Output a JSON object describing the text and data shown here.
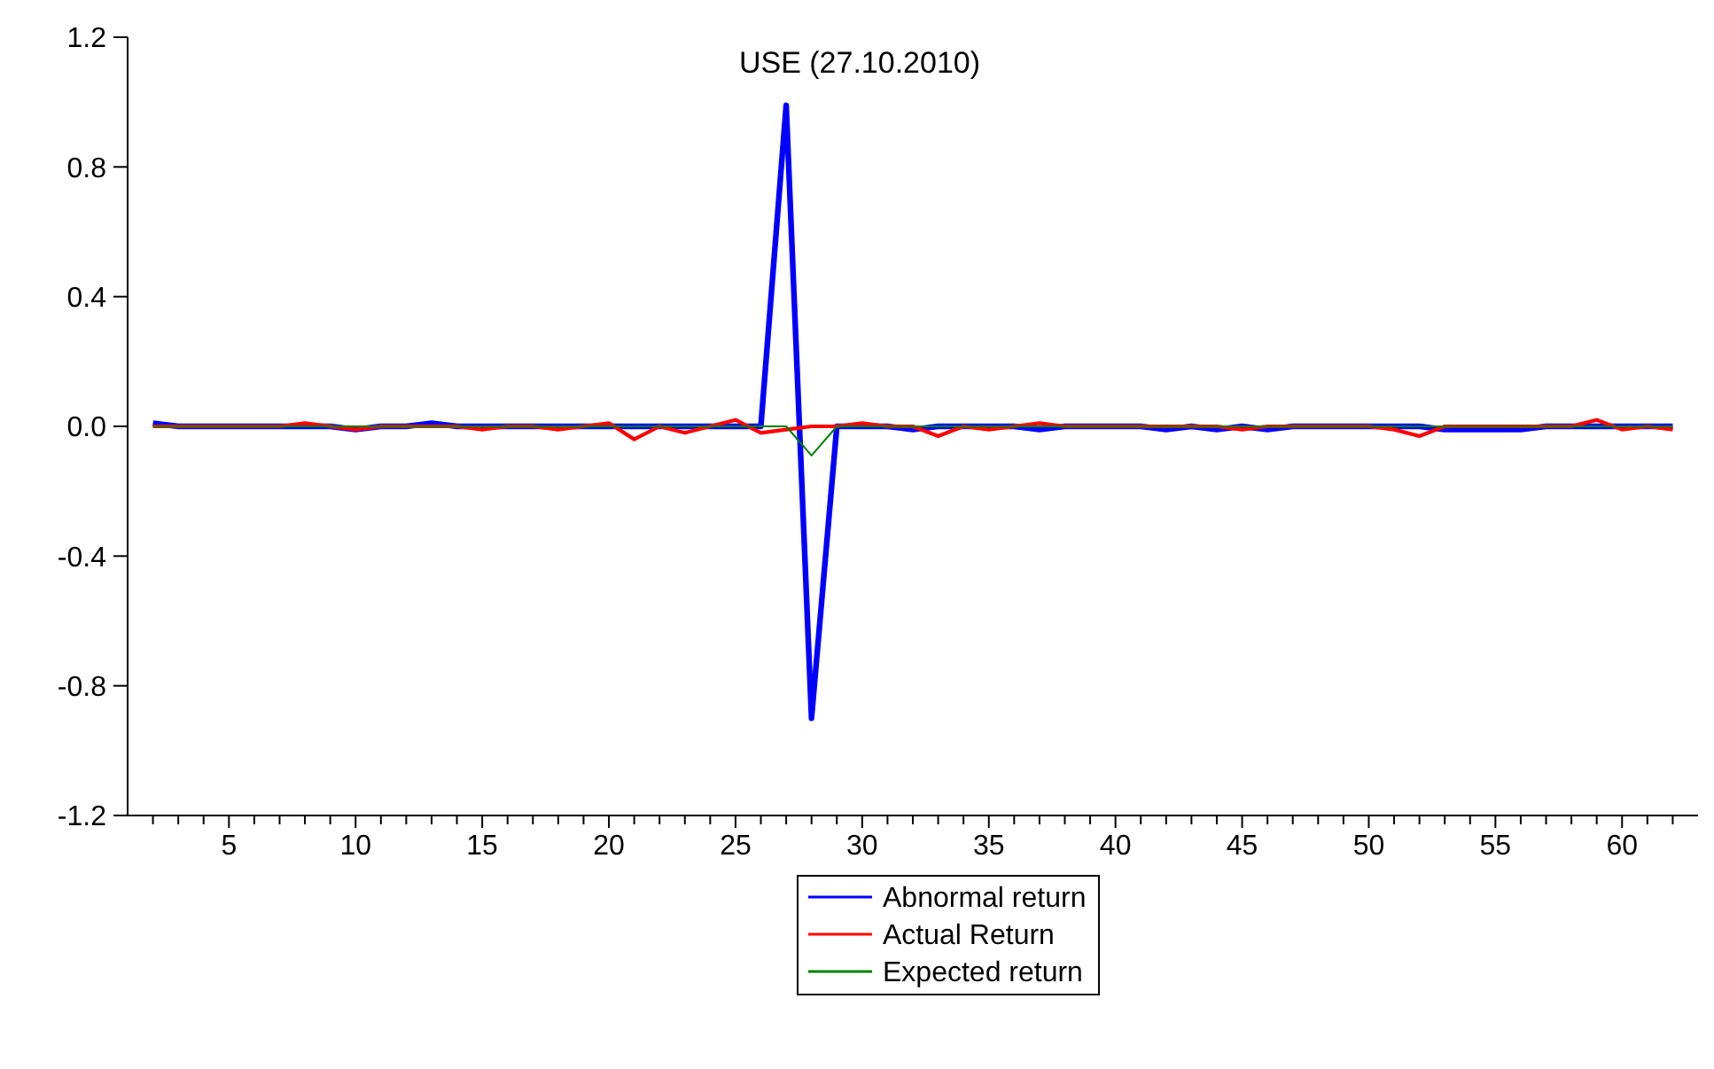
{
  "chart_data": {
    "type": "line",
    "title": "USE (27.10.2010)",
    "x": [
      2,
      3,
      4,
      5,
      6,
      7,
      8,
      9,
      10,
      11,
      12,
      13,
      14,
      15,
      16,
      17,
      18,
      19,
      20,
      21,
      22,
      23,
      24,
      25,
      26,
      27,
      28,
      29,
      30,
      31,
      32,
      33,
      34,
      35,
      36,
      37,
      38,
      39,
      40,
      41,
      42,
      43,
      44,
      45,
      46,
      47,
      48,
      49,
      50,
      51,
      52,
      53,
      54,
      55,
      56,
      57,
      58,
      59,
      60,
      61,
      62
    ],
    "series": [
      {
        "name": "Abnormal return",
        "color": "#0000ff",
        "values": [
          0.01,
          0,
          0,
          0,
          0,
          0,
          0,
          0,
          -0.01,
          0,
          0,
          0.01,
          0,
          0,
          0,
          0,
          0,
          0,
          0,
          0,
          0,
          0,
          0,
          0,
          0,
          0.99,
          -0.9,
          0,
          0,
          0,
          -0.01,
          0,
          0,
          0,
          0,
          -0.01,
          0,
          0,
          0,
          0,
          -0.01,
          0,
          -0.01,
          0,
          -0.01,
          0,
          0,
          0,
          0,
          0,
          0,
          -0.01,
          -0.01,
          -0.01,
          -0.01,
          0,
          0,
          0,
          0,
          0,
          0
        ]
      },
      {
        "name": "Actual Return",
        "color": "#ff0000",
        "values": [
          0,
          0,
          0,
          0,
          0,
          0,
          0.01,
          0,
          -0.01,
          0,
          0,
          0,
          0,
          -0.01,
          0,
          0,
          -0.01,
          0,
          0.01,
          -0.04,
          0,
          -0.02,
          0,
          0.02,
          -0.02,
          -0.01,
          0,
          0,
          0.01,
          0,
          0,
          -0.03,
          0,
          -0.01,
          0,
          0.01,
          0,
          0,
          0,
          0,
          0,
          0,
          0,
          -0.01,
          0,
          0,
          0,
          0,
          0,
          -0.01,
          -0.03,
          0,
          0,
          0,
          0,
          0,
          0,
          0.02,
          -0.01,
          0,
          -0.01
        ]
      },
      {
        "name": "Expected return",
        "color": "#008000",
        "values": [
          0,
          0,
          0,
          0,
          0,
          0,
          0,
          0,
          0,
          0,
          0,
          0,
          0,
          0,
          0,
          0,
          0,
          0,
          0,
          0,
          0,
          0,
          0,
          0,
          0,
          0,
          -0.09,
          0,
          0,
          0,
          0,
          0,
          0,
          0,
          0,
          0,
          0,
          0,
          0,
          0,
          0,
          0,
          0,
          0,
          0,
          0,
          0,
          0,
          0,
          0,
          0,
          0,
          0,
          0,
          0,
          0,
          0,
          0,
          0,
          0,
          0
        ]
      }
    ],
    "xlim": [
      1,
      63
    ],
    "xticks": [
      {
        "value": 2,
        "label": null
      },
      {
        "value": 3,
        "label": null
      },
      {
        "value": 4,
        "label": null
      },
      5,
      {
        "value": 6,
        "label": null
      },
      {
        "value": 7,
        "label": null
      },
      {
        "value": 8,
        "label": null
      },
      {
        "value": 9,
        "label": null
      },
      10,
      {
        "value": 11,
        "label": null
      },
      {
        "value": 12,
        "label": null
      },
      {
        "value": 13,
        "label": null
      },
      {
        "value": 14,
        "label": null
      },
      15,
      {
        "value": 16,
        "label": null
      },
      {
        "value": 17,
        "label": null
      },
      {
        "value": 18,
        "label": null
      },
      {
        "value": 19,
        "label": null
      },
      20,
      {
        "value": 21,
        "label": null
      },
      {
        "value": 22,
        "label": null
      },
      {
        "value": 23,
        "label": null
      },
      {
        "value": 24,
        "label": null
      },
      25,
      {
        "value": 26,
        "label": null
      },
      {
        "value": 27,
        "label": null
      },
      {
        "value": 28,
        "label": null
      },
      {
        "value": 29,
        "label": null
      },
      30,
      {
        "value": 31,
        "label": null
      },
      {
        "value": 32,
        "label": null
      },
      {
        "value": 33,
        "label": null
      },
      {
        "value": 34,
        "label": null
      },
      35,
      {
        "value": 36,
        "label": null
      },
      {
        "value": 37,
        "label": null
      },
      {
        "value": 38,
        "label": null
      },
      {
        "value": 39,
        "label": null
      },
      40,
      {
        "value": 41,
        "label": null
      },
      {
        "value": 42,
        "label": null
      },
      {
        "value": 43,
        "label": null
      },
      {
        "value": 44,
        "label": null
      },
      45,
      {
        "value": 46,
        "label": null
      },
      {
        "value": 47,
        "label": null
      },
      {
        "value": 48,
        "label": null
      },
      {
        "value": 49,
        "label": null
      },
      50,
      {
        "value": 51,
        "label": null
      },
      {
        "value": 52,
        "label": null
      },
      {
        "value": 53,
        "label": null
      },
      {
        "value": 54,
        "label": null
      },
      55,
      {
        "value": 56,
        "label": null
      },
      {
        "value": 57,
        "label": null
      },
      {
        "value": 58,
        "label": null
      },
      {
        "value": 59,
        "label": null
      },
      60,
      {
        "value": 61,
        "label": null
      },
      {
        "value": 62,
        "label": null
      }
    ],
    "ylim": [
      -1.2,
      1.2
    ],
    "yticks": [
      -1.2,
      -0.8,
      -0.4,
      {
        "value": 0,
        "label": "0.0"
      },
      0.4,
      0.8,
      1.2
    ],
    "legend": "bottom",
    "grid": false,
    "marker": "none",
    "line_style": "solid"
  }
}
